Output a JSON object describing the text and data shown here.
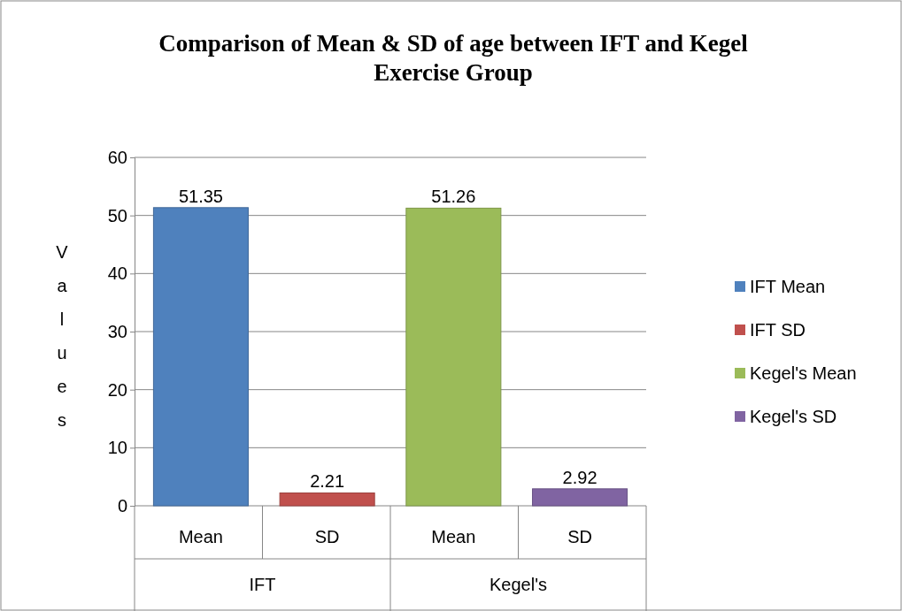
{
  "chart_data": {
    "type": "bar",
    "title": "Comparison of Mean & SD of age between IFT and Kegel Exercise Group",
    "ylabel": "Values",
    "categories": [
      "Mean",
      "SD",
      "Mean",
      "SD"
    ],
    "series": [
      {
        "name": "IFT Mean",
        "color": "#4f81bd",
        "values": [
          51.35,
          null,
          null,
          null
        ]
      },
      {
        "name": "IFT SD",
        "color": "#c0504d",
        "values": [
          null,
          2.21,
          null,
          null
        ]
      },
      {
        "name": "Kegel's Mean",
        "color": "#9bbb59",
        "values": [
          null,
          null,
          51.26,
          null
        ]
      },
      {
        "name": "Kegel's SD",
        "color": "#8064a2",
        "values": [
          null,
          null,
          null,
          2.92
        ]
      }
    ],
    "annotations": [
      "IFT",
      "Kegel's"
    ],
    "ylim": [
      0,
      60
    ],
    "yticks": [
      0,
      10,
      20,
      30,
      40,
      50,
      60
    ],
    "grid": "y",
    "legend": "right",
    "data_labels": true
  }
}
